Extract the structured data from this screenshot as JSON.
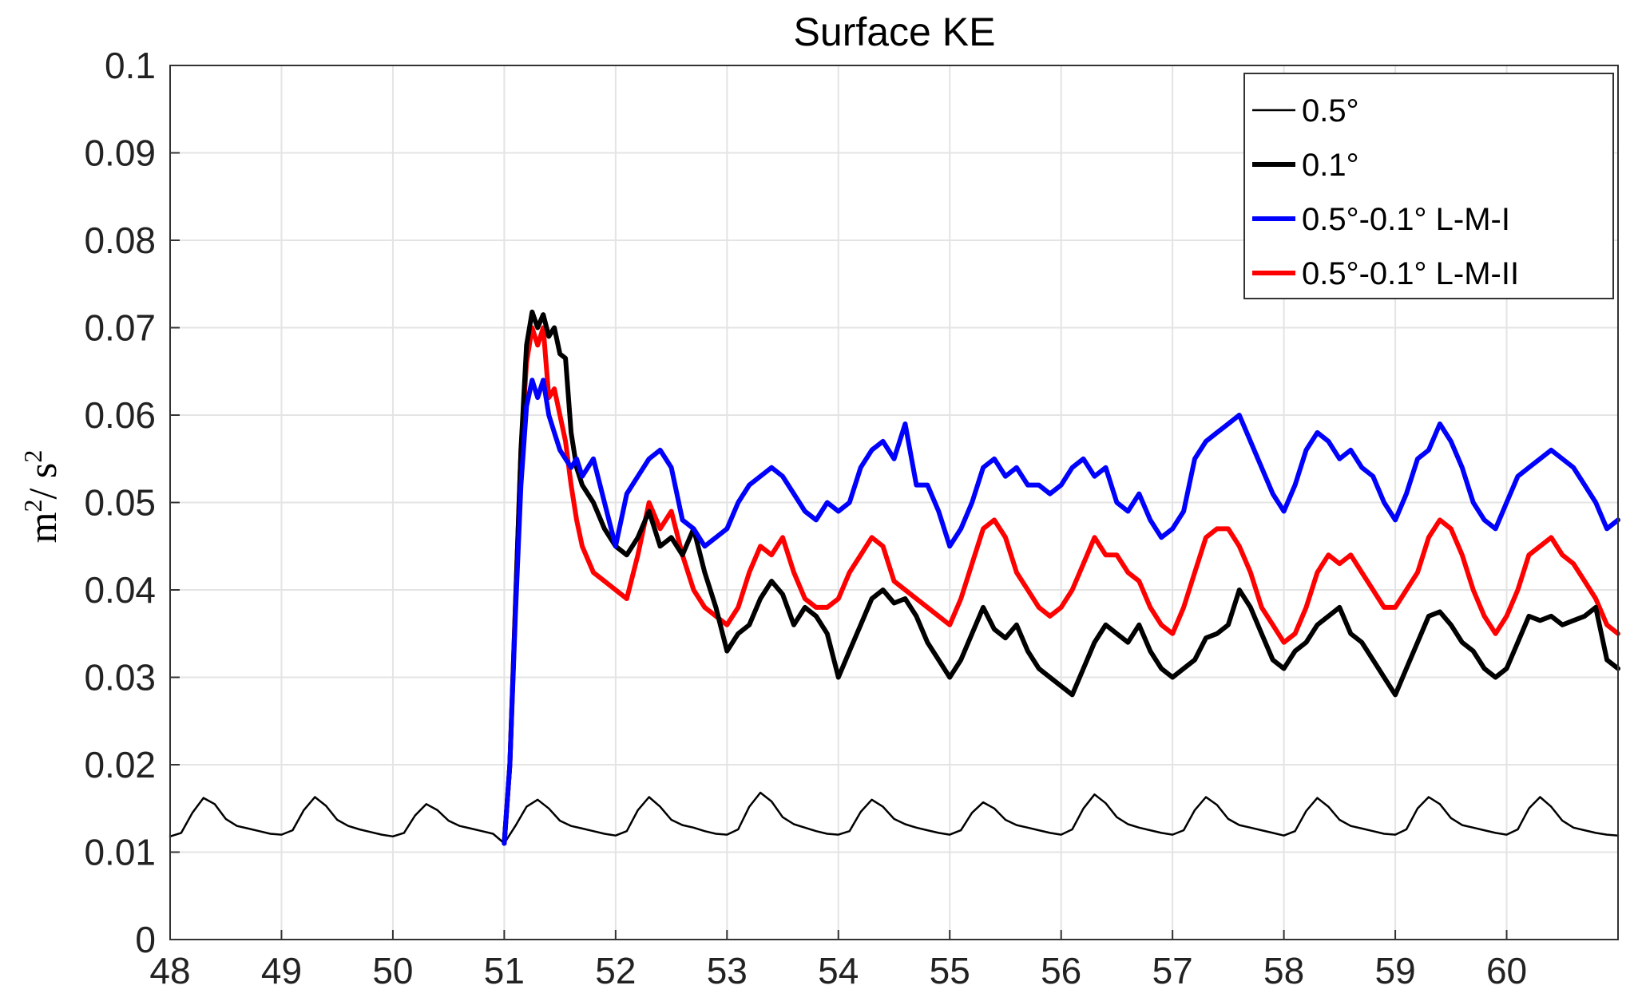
{
  "chart_data": {
    "type": "line",
    "title": "Surface KE",
    "xlabel": "",
    "ylabel": "m²/ s²",
    "xlim": [
      48,
      61
    ],
    "ylim": [
      0,
      0.1
    ],
    "xticks": [
      "48",
      "49",
      "50",
      "51",
      "52",
      "53",
      "54",
      "55",
      "56",
      "57",
      "58",
      "59",
      "60"
    ],
    "yticks": [
      "0",
      "0.01",
      "0.02",
      "0.03",
      "0.04",
      "0.05",
      "0.06",
      "0.07",
      "0.08",
      "0.09",
      "0.1"
    ],
    "grid": true,
    "legend_position": "top-right",
    "series": [
      {
        "name": "0.5°",
        "color": "#000000",
        "x": [
          48.0,
          48.1,
          48.2,
          48.3,
          48.4,
          48.5,
          48.6,
          48.7,
          48.8,
          48.9,
          49.0,
          49.1,
          49.2,
          49.3,
          49.4,
          49.5,
          49.6,
          49.7,
          49.8,
          49.9,
          50.0,
          50.1,
          50.2,
          50.3,
          50.4,
          50.5,
          50.6,
          50.7,
          50.8,
          50.9,
          51.0,
          51.1,
          51.2,
          51.3,
          51.4,
          51.5,
          51.6,
          51.7,
          51.8,
          51.9,
          52.0,
          52.1,
          52.2,
          52.3,
          52.4,
          52.5,
          52.6,
          52.7,
          52.8,
          52.9,
          53.0,
          53.1,
          53.2,
          53.3,
          53.4,
          53.5,
          53.6,
          53.7,
          53.8,
          53.9,
          54.0,
          54.1,
          54.2,
          54.3,
          54.4,
          54.5,
          54.6,
          54.7,
          54.8,
          54.9,
          55.0,
          55.1,
          55.2,
          55.3,
          55.4,
          55.5,
          55.6,
          55.7,
          55.8,
          55.9,
          56.0,
          56.1,
          56.2,
          56.3,
          56.4,
          56.5,
          56.6,
          56.7,
          56.8,
          56.9,
          57.0,
          57.1,
          57.2,
          57.3,
          57.4,
          57.5,
          57.6,
          57.7,
          57.8,
          57.9,
          58.0,
          58.1,
          58.2,
          58.3,
          58.4,
          58.5,
          58.6,
          58.7,
          58.8,
          58.9,
          59.0,
          59.1,
          59.2,
          59.3,
          59.4,
          59.5,
          59.6,
          59.7,
          59.8,
          59.9,
          60.0,
          60.1,
          60.2,
          60.3,
          60.4,
          60.5,
          60.6,
          60.7,
          60.8,
          60.9,
          61.0
        ],
        "values": [
          0.0118,
          0.0122,
          0.0145,
          0.0162,
          0.0155,
          0.0138,
          0.013,
          0.0127,
          0.0124,
          0.0121,
          0.012,
          0.0125,
          0.0148,
          0.0163,
          0.0153,
          0.0137,
          0.013,
          0.0126,
          0.0123,
          0.012,
          0.0118,
          0.0122,
          0.0142,
          0.0155,
          0.0148,
          0.0136,
          0.013,
          0.0127,
          0.0124,
          0.0121,
          0.011,
          0.013,
          0.0152,
          0.016,
          0.015,
          0.0136,
          0.013,
          0.0127,
          0.0124,
          0.0121,
          0.0119,
          0.0124,
          0.0148,
          0.0163,
          0.0152,
          0.0137,
          0.0131,
          0.0128,
          0.0124,
          0.0121,
          0.012,
          0.0126,
          0.0152,
          0.0168,
          0.0158,
          0.014,
          0.0132,
          0.0128,
          0.0124,
          0.0121,
          0.012,
          0.0124,
          0.0146,
          0.016,
          0.0152,
          0.0138,
          0.0132,
          0.0128,
          0.0125,
          0.0122,
          0.012,
          0.0125,
          0.0145,
          0.0157,
          0.015,
          0.0137,
          0.0131,
          0.0128,
          0.0125,
          0.0122,
          0.012,
          0.0126,
          0.015,
          0.0166,
          0.0156,
          0.014,
          0.0132,
          0.0128,
          0.0125,
          0.0122,
          0.012,
          0.0125,
          0.0148,
          0.0163,
          0.0154,
          0.0138,
          0.0131,
          0.0128,
          0.0125,
          0.0122,
          0.0119,
          0.0124,
          0.0147,
          0.0162,
          0.0152,
          0.0137,
          0.013,
          0.0127,
          0.0124,
          0.0121,
          0.012,
          0.0126,
          0.015,
          0.0163,
          0.0155,
          0.0139,
          0.0131,
          0.0128,
          0.0125,
          0.0122,
          0.012,
          0.0126,
          0.015,
          0.0163,
          0.0152,
          0.0136,
          0.0128,
          0.0125,
          0.0122,
          0.012,
          0.0119
        ],
        "width": 2.5
      },
      {
        "name": "0.1°",
        "color": "#000000",
        "x": [
          51.0,
          51.05,
          51.1,
          51.15,
          51.2,
          51.25,
          51.3,
          51.35,
          51.4,
          51.45,
          51.5,
          51.55,
          51.6,
          51.65,
          51.7,
          51.8,
          51.9,
          52.0,
          52.1,
          52.2,
          52.3,
          52.4,
          52.5,
          52.6,
          52.7,
          52.8,
          52.9,
          53.0,
          53.1,
          53.2,
          53.3,
          53.4,
          53.5,
          53.6,
          53.7,
          53.8,
          53.9,
          54.0,
          54.1,
          54.2,
          54.3,
          54.4,
          54.5,
          54.6,
          54.7,
          54.8,
          54.9,
          55.0,
          55.1,
          55.2,
          55.3,
          55.4,
          55.5,
          55.6,
          55.7,
          55.8,
          55.9,
          56.0,
          56.1,
          56.2,
          56.3,
          56.4,
          56.5,
          56.6,
          56.7,
          56.8,
          56.9,
          57.0,
          57.1,
          57.2,
          57.3,
          57.4,
          57.5,
          57.6,
          57.7,
          57.8,
          57.9,
          58.0,
          58.1,
          58.2,
          58.3,
          58.4,
          58.5,
          58.6,
          58.7,
          58.8,
          58.9,
          59.0,
          59.1,
          59.2,
          59.3,
          59.4,
          59.5,
          59.6,
          59.7,
          59.8,
          59.9,
          60.0,
          60.1,
          60.2,
          60.3,
          60.4,
          60.5,
          60.6,
          60.7,
          60.8,
          60.9,
          61.0
        ],
        "values": [
          0.011,
          0.02,
          0.038,
          0.056,
          0.068,
          0.0718,
          0.07,
          0.0715,
          0.069,
          0.07,
          0.067,
          0.0665,
          0.058,
          0.054,
          0.052,
          0.05,
          0.047,
          0.045,
          0.044,
          0.046,
          0.049,
          0.045,
          0.046,
          0.044,
          0.047,
          0.042,
          0.038,
          0.033,
          0.035,
          0.036,
          0.039,
          0.041,
          0.0395,
          0.036,
          0.038,
          0.037,
          0.035,
          0.03,
          0.033,
          0.036,
          0.039,
          0.04,
          0.0385,
          0.039,
          0.037,
          0.034,
          0.032,
          0.03,
          0.032,
          0.035,
          0.038,
          0.0355,
          0.0345,
          0.036,
          0.033,
          0.031,
          0.03,
          0.029,
          0.028,
          0.031,
          0.034,
          0.036,
          0.035,
          0.034,
          0.036,
          0.033,
          0.031,
          0.03,
          0.031,
          0.032,
          0.0345,
          0.035,
          0.036,
          0.04,
          0.038,
          0.035,
          0.032,
          0.031,
          0.033,
          0.034,
          0.036,
          0.037,
          0.038,
          0.035,
          0.034,
          0.032,
          0.03,
          0.028,
          0.031,
          0.034,
          0.037,
          0.0375,
          0.036,
          0.034,
          0.033,
          0.031,
          0.03,
          0.031,
          0.034,
          0.037,
          0.0365,
          0.037,
          0.036,
          0.0365,
          0.037,
          0.038,
          0.032,
          0.031
        ],
        "width": 6
      },
      {
        "name": "0.5°-0.1° L-M-I",
        "color": "#0000ff",
        "x": [
          51.0,
          51.05,
          51.1,
          51.15,
          51.2,
          51.25,
          51.3,
          51.35,
          51.4,
          51.45,
          51.5,
          51.55,
          51.6,
          51.65,
          51.7,
          51.8,
          51.9,
          52.0,
          52.1,
          52.2,
          52.3,
          52.4,
          52.5,
          52.6,
          52.7,
          52.8,
          52.9,
          53.0,
          53.1,
          53.2,
          53.3,
          53.4,
          53.5,
          53.6,
          53.7,
          53.8,
          53.9,
          54.0,
          54.1,
          54.2,
          54.3,
          54.4,
          54.5,
          54.6,
          54.7,
          54.8,
          54.9,
          55.0,
          55.1,
          55.2,
          55.3,
          55.4,
          55.5,
          55.6,
          55.7,
          55.8,
          55.9,
          56.0,
          56.1,
          56.2,
          56.3,
          56.4,
          56.5,
          56.6,
          56.7,
          56.8,
          56.9,
          57.0,
          57.1,
          57.2,
          57.3,
          57.4,
          57.5,
          57.6,
          57.7,
          57.8,
          57.9,
          58.0,
          58.1,
          58.2,
          58.3,
          58.4,
          58.5,
          58.6,
          58.7,
          58.8,
          58.9,
          59.0,
          59.1,
          59.2,
          59.3,
          59.4,
          59.5,
          59.6,
          59.7,
          59.8,
          59.9,
          60.0,
          60.1,
          60.2,
          60.3,
          60.4,
          60.5,
          60.6,
          60.7,
          60.8,
          60.9,
          61.0
        ],
        "values": [
          0.011,
          0.02,
          0.037,
          0.052,
          0.061,
          0.064,
          0.062,
          0.064,
          0.06,
          0.058,
          0.056,
          0.055,
          0.054,
          0.055,
          0.053,
          0.055,
          0.05,
          0.045,
          0.051,
          0.053,
          0.055,
          0.056,
          0.054,
          0.048,
          0.047,
          0.045,
          0.046,
          0.047,
          0.05,
          0.052,
          0.053,
          0.054,
          0.053,
          0.051,
          0.049,
          0.048,
          0.05,
          0.049,
          0.05,
          0.054,
          0.056,
          0.057,
          0.055,
          0.059,
          0.052,
          0.052,
          0.049,
          0.045,
          0.047,
          0.05,
          0.054,
          0.055,
          0.053,
          0.054,
          0.052,
          0.052,
          0.051,
          0.052,
          0.054,
          0.055,
          0.053,
          0.054,
          0.05,
          0.049,
          0.051,
          0.048,
          0.046,
          0.047,
          0.049,
          0.055,
          0.057,
          0.058,
          0.059,
          0.06,
          0.057,
          0.054,
          0.051,
          0.049,
          0.052,
          0.056,
          0.058,
          0.057,
          0.055,
          0.056,
          0.054,
          0.053,
          0.05,
          0.048,
          0.051,
          0.055,
          0.056,
          0.059,
          0.057,
          0.054,
          0.05,
          0.048,
          0.047,
          0.05,
          0.053,
          0.054,
          0.055,
          0.056,
          0.055,
          0.054,
          0.052,
          0.05,
          0.047,
          0.048
        ],
        "width": 6
      },
      {
        "name": "0.5°-0.1° L-M-II",
        "color": "#ff0000",
        "x": [
          51.0,
          51.05,
          51.1,
          51.15,
          51.2,
          51.25,
          51.3,
          51.35,
          51.4,
          51.45,
          51.5,
          51.55,
          51.6,
          51.65,
          51.7,
          51.8,
          51.9,
          52.0,
          52.1,
          52.2,
          52.3,
          52.4,
          52.5,
          52.6,
          52.7,
          52.8,
          52.9,
          53.0,
          53.1,
          53.2,
          53.3,
          53.4,
          53.5,
          53.6,
          53.7,
          53.8,
          53.9,
          54.0,
          54.1,
          54.2,
          54.3,
          54.4,
          54.5,
          54.6,
          54.7,
          54.8,
          54.9,
          55.0,
          55.1,
          55.2,
          55.3,
          55.4,
          55.5,
          55.6,
          55.7,
          55.8,
          55.9,
          56.0,
          56.1,
          56.2,
          56.3,
          56.4,
          56.5,
          56.6,
          56.7,
          56.8,
          56.9,
          57.0,
          57.1,
          57.2,
          57.3,
          57.4,
          57.5,
          57.6,
          57.7,
          57.8,
          57.9,
          58.0,
          58.1,
          58.2,
          58.3,
          58.4,
          58.5,
          58.6,
          58.7,
          58.8,
          58.9,
          59.0,
          59.1,
          59.2,
          59.3,
          59.4,
          59.5,
          59.6,
          59.7,
          59.8,
          59.9,
          60.0,
          60.1,
          60.2,
          60.3,
          60.4,
          60.5,
          60.6,
          60.7,
          60.8,
          60.9,
          61.0
        ],
        "values": [
          0.011,
          0.02,
          0.038,
          0.056,
          0.066,
          0.07,
          0.068,
          0.07,
          0.062,
          0.063,
          0.06,
          0.057,
          0.052,
          0.048,
          0.045,
          0.042,
          0.041,
          0.04,
          0.039,
          0.044,
          0.05,
          0.047,
          0.049,
          0.044,
          0.04,
          0.038,
          0.037,
          0.036,
          0.038,
          0.042,
          0.045,
          0.044,
          0.046,
          0.042,
          0.039,
          0.038,
          0.038,
          0.039,
          0.042,
          0.044,
          0.046,
          0.045,
          0.041,
          0.04,
          0.039,
          0.038,
          0.037,
          0.036,
          0.039,
          0.043,
          0.047,
          0.048,
          0.046,
          0.042,
          0.04,
          0.038,
          0.037,
          0.038,
          0.04,
          0.043,
          0.046,
          0.044,
          0.044,
          0.042,
          0.041,
          0.038,
          0.036,
          0.035,
          0.038,
          0.042,
          0.046,
          0.047,
          0.047,
          0.045,
          0.042,
          0.038,
          0.036,
          0.034,
          0.035,
          0.038,
          0.042,
          0.044,
          0.043,
          0.044,
          0.042,
          0.04,
          0.038,
          0.038,
          0.04,
          0.042,
          0.046,
          0.048,
          0.047,
          0.044,
          0.04,
          0.037,
          0.035,
          0.037,
          0.04,
          0.044,
          0.045,
          0.046,
          0.044,
          0.043,
          0.041,
          0.039,
          0.036,
          0.035
        ],
        "width": 6
      }
    ]
  }
}
